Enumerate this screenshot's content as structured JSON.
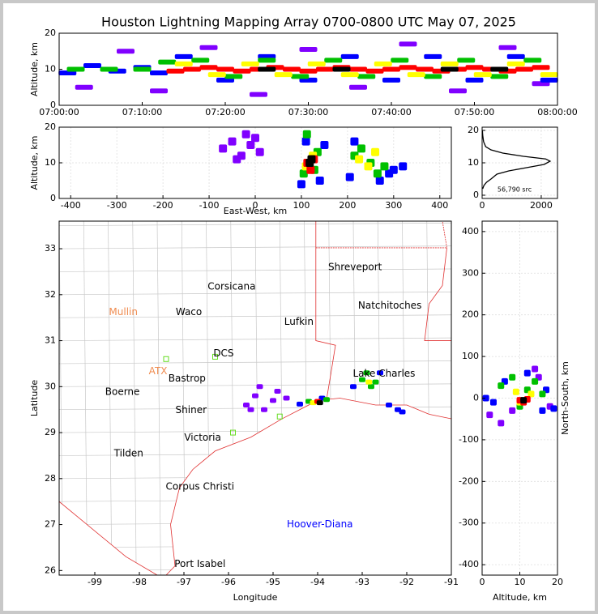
{
  "chart_data": [
    {
      "type": "scatter",
      "title": "Houston Lightning Mapping Array 0700-0800 UTC May 07, 2025",
      "y_label": "Altitude, km",
      "xlim": [
        "07:00:00",
        "08:00:00"
      ],
      "xticks": [
        "07:00:00",
        "07:10:00",
        "07:20:00",
        "07:30:00",
        "07:40:00",
        "07:50:00",
        "08:00:00"
      ],
      "ylim": [
        0,
        20
      ],
      "yticks": [
        0,
        10,
        20
      ],
      "series": [
        {
          "color": "#8000ff",
          "x": [
            "07:03:00",
            "07:08:00",
            "07:12:00",
            "07:18:00",
            "07:24:00",
            "07:30:00",
            "07:36:00",
            "07:42:00",
            "07:48:00",
            "07:54:00",
            "07:58:00"
          ],
          "y": [
            5,
            15,
            4,
            16,
            3,
            15.5,
            5,
            17,
            4,
            16,
            6
          ]
        },
        {
          "color": "#0000ff",
          "x": [
            "07:01:00",
            "07:04:00",
            "07:07:00",
            "07:10:00",
            "07:12:00",
            "07:15:00",
            "07:20:00",
            "07:25:00",
            "07:30:00",
            "07:35:00",
            "07:40:00",
            "07:45:00",
            "07:50:00",
            "07:55:00",
            "07:59:00"
          ],
          "y": [
            9,
            11,
            9.5,
            10.5,
            9,
            13.5,
            7,
            13.5,
            7,
            13.5,
            7,
            13.5,
            7,
            13.5,
            7
          ]
        },
        {
          "color": "#00c000",
          "x": [
            "07:02:00",
            "07:06:00",
            "07:10:00",
            "07:13:00",
            "07:17:00",
            "07:21:00",
            "07:25:00",
            "07:29:00",
            "07:33:00",
            "07:37:00",
            "07:41:00",
            "07:45:00",
            "07:49:00",
            "07:53:00",
            "07:57:00"
          ],
          "y": [
            10,
            10,
            10,
            12,
            12.5,
            8,
            12.5,
            8,
            12.5,
            8,
            12.5,
            8,
            12.5,
            8,
            12.5
          ]
        },
        {
          "color": "#ffff00",
          "x": [
            "07:15:00",
            "07:19:00",
            "07:23:00",
            "07:27:00",
            "07:31:00",
            "07:35:00",
            "07:39:00",
            "07:43:00",
            "07:47:00",
            "07:51:00",
            "07:55:00",
            "07:59:00"
          ],
          "y": [
            11.5,
            8.5,
            11.5,
            8.5,
            11.5,
            8.5,
            11.5,
            8.5,
            11.5,
            8.5,
            11.5,
            8.5
          ]
        },
        {
          "color": "#ff0000",
          "x": [
            "07:14:00",
            "07:16:00",
            "07:18:00",
            "07:20:00",
            "07:22:00",
            "07:24:00",
            "07:26:00",
            "07:28:00",
            "07:30:00",
            "07:32:00",
            "07:34:00",
            "07:36:00",
            "07:38:00",
            "07:40:00",
            "07:42:00",
            "07:44:00",
            "07:46:00",
            "07:48:00",
            "07:50:00",
            "07:52:00",
            "07:54:00",
            "07:56:00",
            "07:58:00"
          ],
          "y": [
            9.5,
            10,
            10.5,
            10,
            9.5,
            10,
            10.5,
            10,
            9.5,
            10,
            10.5,
            10,
            9.5,
            10,
            10.5,
            10,
            9.5,
            10,
            10.5,
            10,
            9.5,
            10,
            10.5
          ]
        },
        {
          "color": "#000000",
          "x": [
            "07:25:00",
            "07:34:00",
            "07:47:00",
            "07:53:00"
          ],
          "y": [
            10,
            10,
            10,
            10
          ]
        }
      ]
    },
    {
      "type": "scatter",
      "x_label": "East-West, km",
      "y_label": "Altitude, km",
      "grid": true,
      "xlim": [
        -425,
        425
      ],
      "xticks": [
        -400,
        -300,
        -200,
        -100,
        0,
        100,
        200,
        300,
        400
      ],
      "ylim": [
        0,
        20
      ],
      "yticks": [
        0,
        10,
        20
      ],
      "series": [
        {
          "color": "#8000ff",
          "x": [
            -70,
            -50,
            -30,
            -10,
            10,
            -40,
            -20,
            0
          ],
          "y": [
            14,
            16,
            12,
            15,
            13,
            11,
            18,
            17
          ]
        },
        {
          "color": "#0000ff",
          "x": [
            100,
            110,
            140,
            150,
            205,
            215,
            270,
            290,
            300,
            320
          ],
          "y": [
            4,
            16,
            5,
            15,
            6,
            16,
            5,
            7,
            8,
            9
          ]
        },
        {
          "color": "#00c000",
          "x": [
            105,
            135,
            112,
            128,
            215,
            230,
            250,
            265,
            280
          ],
          "y": [
            7,
            13,
            18,
            8,
            12,
            14,
            10,
            7,
            9
          ]
        },
        {
          "color": "#ffff00",
          "x": [
            110,
            125,
            225,
            245,
            260
          ],
          "y": [
            9,
            12,
            11,
            9,
            13
          ]
        },
        {
          "color": "#ff0000",
          "x": [
            113,
            127,
            120
          ],
          "y": [
            10,
            11,
            8
          ]
        },
        {
          "color": "#000000",
          "x": [
            118,
            122
          ],
          "y": [
            10,
            11
          ]
        }
      ]
    },
    {
      "type": "line",
      "annotation": "56,790 src",
      "grid": true,
      "xlim": [
        0,
        2550
      ],
      "xticks": [
        0,
        2000
      ],
      "ylim": [
        -1,
        21
      ],
      "yticks": [
        0,
        10,
        20
      ],
      "series": [
        {
          "color": "#000000",
          "x": [
            20,
            60,
            150,
            300,
            500,
            900,
            1500,
            2100,
            2300,
            2150,
            1400,
            700,
            300,
            120,
            50,
            20,
            10
          ],
          "y": [
            2,
            3,
            4,
            5,
            6.5,
            7.5,
            8.5,
            9.5,
            10.5,
            11.2,
            12,
            13,
            14,
            15,
            16.5,
            18.5,
            20
          ]
        }
      ]
    },
    {
      "type": "map",
      "x_label": "Longitude",
      "y_label": "Latitude",
      "xlim": [
        -99.8,
        -91
      ],
      "xticks": [
        -99,
        -98,
        -97,
        -96,
        -95,
        -94,
        -93,
        -92,
        -91
      ],
      "ylim": [
        25.9,
        33.6
      ],
      "yticks": [
        26,
        27,
        28,
        29,
        30,
        31,
        32,
        33
      ],
      "series": [
        {
          "color": "#8000ff",
          "x": [
            -95.6,
            -95.4,
            -95.2,
            -95.0,
            -94.9,
            -95.3,
            -95.5,
            -94.7
          ],
          "y": [
            29.6,
            29.8,
            29.5,
            29.7,
            29.9,
            30.0,
            29.5,
            29.75
          ]
        },
        {
          "color": "#0000ff",
          "x": [
            -94.4,
            -93.9,
            -93.2,
            -92.6,
            -92.4,
            -92.2,
            -92.1
          ],
          "y": [
            29.62,
            29.75,
            30.0,
            30.3,
            29.6,
            29.5,
            29.45
          ]
        },
        {
          "color": "#00c000",
          "x": [
            -94.2,
            -93.8,
            -93.0,
            -92.8,
            -92.9,
            -92.7
          ],
          "y": [
            29.68,
            29.72,
            30.15,
            30.0,
            30.3,
            30.1
          ]
        },
        {
          "color": "#ffff00",
          "x": [
            -94.1,
            -92.85
          ],
          "y": [
            29.65,
            30.1
          ]
        },
        {
          "color": "#ff0000",
          "x": [
            -94.0
          ],
          "y": [
            29.68
          ]
        },
        {
          "color": "#000000",
          "x": [
            -93.95
          ],
          "y": [
            29.65
          ]
        }
      ],
      "labels": [
        {
          "text": "Shreveport",
          "lon": -93.16,
          "lat": 32.6,
          "color": "#000000"
        },
        {
          "text": "Corsicana",
          "lon": -95.93,
          "lat": 32.17,
          "color": "#000000"
        },
        {
          "text": "Natchitoches",
          "lon": -92.38,
          "lat": 31.76,
          "color": "#000000"
        },
        {
          "text": "Mullin",
          "lon": -98.36,
          "lat": 31.62,
          "color": "#f08c50"
        },
        {
          "text": "Waco",
          "lon": -96.89,
          "lat": 31.62,
          "color": "#000000"
        },
        {
          "text": "Lufkin",
          "lon": -94.42,
          "lat": 31.41,
          "color": "#000000"
        },
        {
          "text": "DCS",
          "lon": -96.11,
          "lat": 30.72,
          "color": "#000000"
        },
        {
          "text": "Lake Charles",
          "lon": -92.51,
          "lat": 30.28,
          "color": "#000000"
        },
        {
          "text": "ATX",
          "lon": -97.58,
          "lat": 30.33,
          "color": "#f08c50"
        },
        {
          "text": "Bastrop",
          "lon": -96.93,
          "lat": 30.17,
          "color": "#000000"
        },
        {
          "text": "Boerne",
          "lon": -98.38,
          "lat": 29.88,
          "color": "#000000"
        },
        {
          "text": "Shiner",
          "lon": -96.84,
          "lat": 29.49,
          "color": "#000000"
        },
        {
          "text": "Victoria",
          "lon": -96.58,
          "lat": 28.89,
          "color": "#000000"
        },
        {
          "text": "Tilden",
          "lon": -98.24,
          "lat": 28.54,
          "color": "#000000"
        },
        {
          "text": "Corpus Christi",
          "lon": -96.64,
          "lat": 27.82,
          "color": "#000000"
        },
        {
          "text": "Hoover-Diana",
          "lon": -93.95,
          "lat": 27.0,
          "color": "#0000ff"
        },
        {
          "text": "Port Isabel",
          "lon": -96.64,
          "lat": 26.14,
          "color": "#000000"
        }
      ]
    },
    {
      "type": "scatter",
      "x_label": "Altitude, km",
      "y_label": "North-South, km",
      "grid": true,
      "xlim": [
        0,
        20
      ],
      "xticks": [
        0,
        10,
        20
      ],
      "ylim": [
        -425,
        425
      ],
      "yticks": [
        -400,
        -300,
        -200,
        -100,
        0,
        100,
        200,
        300,
        400
      ],
      "series": [
        {
          "color": "#8000ff",
          "x": [
            2,
            5,
            15,
            18,
            8,
            14
          ],
          "y": [
            -40,
            -60,
            50,
            -20,
            -30,
            70
          ]
        },
        {
          "color": "#0000ff",
          "x": [
            1,
            3,
            17,
            19,
            6,
            16,
            12
          ],
          "y": [
            0,
            -10,
            20,
            -25,
            40,
            -30,
            60
          ]
        },
        {
          "color": "#00c000",
          "x": [
            5,
            8,
            14,
            16,
            10,
            12
          ],
          "y": [
            30,
            50,
            40,
            10,
            -20,
            20
          ]
        },
        {
          "color": "#ffff00",
          "x": [
            9,
            13,
            10
          ],
          "y": [
            15,
            10,
            -10
          ]
        },
        {
          "color": "#ff0000",
          "x": [
            10,
            12,
            11
          ],
          "y": [
            -5,
            -3,
            -10
          ]
        },
        {
          "color": "#000000",
          "x": [
            11
          ],
          "y": [
            -5
          ]
        }
      ]
    }
  ]
}
